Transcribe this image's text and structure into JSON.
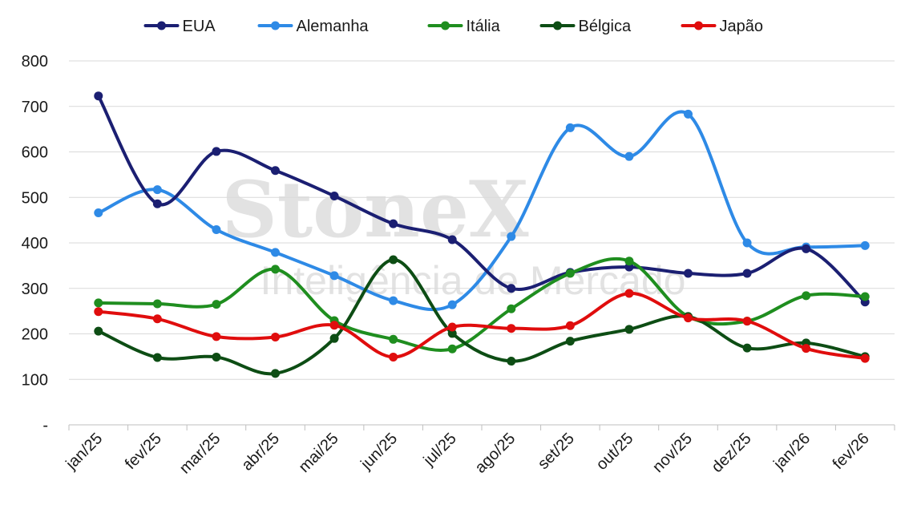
{
  "watermark": {
    "brand": "StoneX",
    "tagline": "Inteligência de Mercado"
  },
  "chart_data": {
    "type": "line",
    "title": "",
    "xlabel": "",
    "ylabel": "",
    "ylim": [
      0,
      800
    ],
    "yticks": [
      {
        "value": 0,
        "label": "-"
      },
      {
        "value": 100,
        "label": "100"
      },
      {
        "value": 200,
        "label": "200"
      },
      {
        "value": 300,
        "label": "300"
      },
      {
        "value": 400,
        "label": "400"
      },
      {
        "value": 500,
        "label": "500"
      },
      {
        "value": 600,
        "label": "600"
      },
      {
        "value": 700,
        "label": "700"
      },
      {
        "value": 800,
        "label": "800"
      }
    ],
    "grid": "horizontal",
    "legend_position": "top",
    "categories": [
      "jan/25",
      "fev/25",
      "mar/25",
      "abr/25",
      "mai/25",
      "jun/25",
      "jul/25",
      "ago/25",
      "set/25",
      "out/25",
      "nov/25",
      "dez/25",
      "jan/26",
      "fev/26"
    ],
    "series": [
      {
        "name": "EUA",
        "color": "#1b1f72",
        "values": [
          723,
          486,
          601,
          559,
          503,
          442,
          407,
          300,
          335,
          347,
          333,
          333,
          387,
          270
        ]
      },
      {
        "name": "Alemanha",
        "color": "#2e8ae6",
        "values": [
          466,
          517,
          429,
          379,
          328,
          273,
          264,
          414,
          653,
          590,
          683,
          400,
          391,
          394
        ]
      },
      {
        "name": "Itália",
        "color": "#1f8e1f",
        "values": [
          268,
          266,
          265,
          342,
          229,
          188,
          167,
          255,
          333,
          360,
          238,
          228,
          284,
          282
        ]
      },
      {
        "name": "Bélgica",
        "color": "#0d4d14",
        "values": [
          206,
          148,
          149,
          113,
          190,
          363,
          201,
          140,
          184,
          210,
          238,
          169,
          180,
          150
        ]
      },
      {
        "name": "Japão",
        "color": "#e00d0d",
        "values": [
          249,
          233,
          194,
          193,
          219,
          149,
          215,
          212,
          218,
          289,
          235,
          228,
          168,
          146
        ]
      }
    ]
  }
}
